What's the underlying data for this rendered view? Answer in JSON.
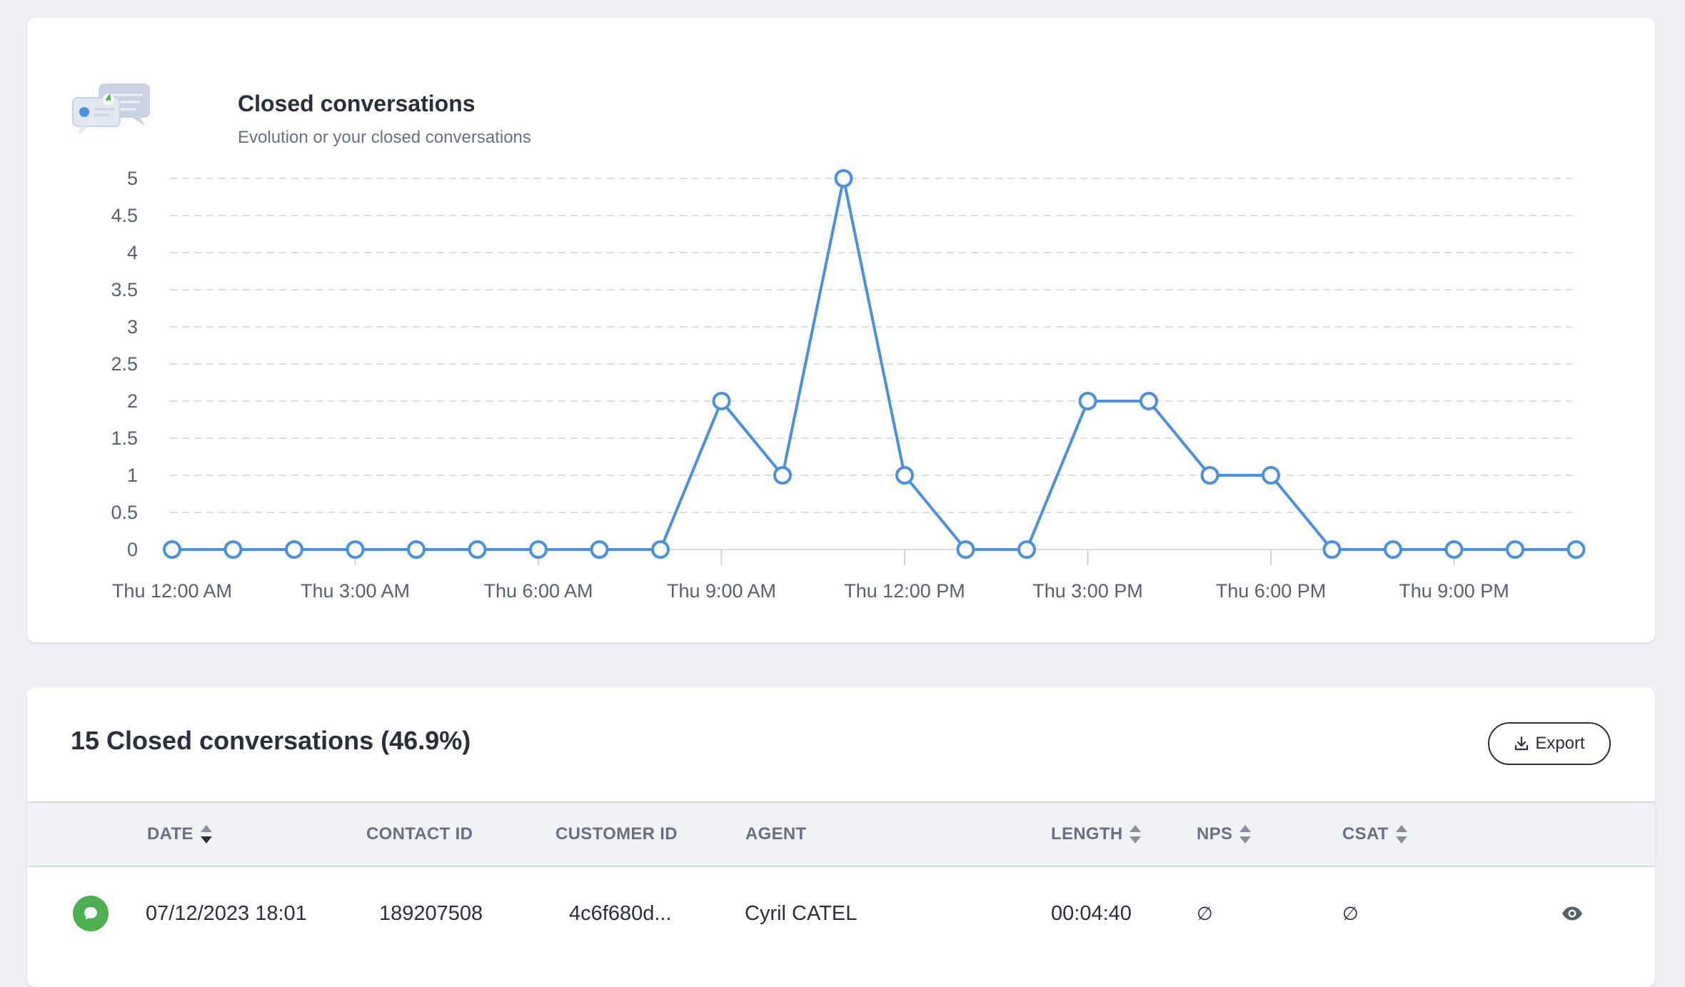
{
  "chart_card": {
    "title": "Closed conversations",
    "subtitle": "Evolution or your closed conversations",
    "icon": "chat-bubbles-icon"
  },
  "chart_data": {
    "type": "line",
    "title": "Closed conversations",
    "subtitle": "Evolution or your closed conversations",
    "xlabel": "",
    "ylabel": "",
    "ylim": [
      0,
      5
    ],
    "y_ticks": [
      "0",
      "0.5",
      "1",
      "1.5",
      "2",
      "2.5",
      "3",
      "3.5",
      "4",
      "4.5",
      "5"
    ],
    "x_tick_labels": [
      "Thu 12:00 AM",
      "Thu 3:00 AM",
      "Thu 6:00 AM",
      "Thu 9:00 AM",
      "Thu 12:00 PM",
      "Thu 3:00 PM",
      "Thu 6:00 PM",
      "Thu 9:00 PM"
    ],
    "x_hours": [
      0,
      1,
      2,
      3,
      4,
      5,
      6,
      7,
      8,
      9,
      10,
      11,
      12,
      13,
      14,
      15,
      16,
      17,
      18,
      19,
      20,
      21,
      22,
      23
    ],
    "series": [
      {
        "values": [
          0,
          0,
          0,
          0,
          0,
          0,
          0,
          0,
          0,
          2,
          1,
          5,
          1,
          0,
          0,
          2,
          2,
          1,
          1,
          0,
          0,
          0,
          0,
          0
        ],
        "color": "#4a90e2"
      }
    ],
    "grid": true,
    "grid_style": "dashed-horizontal",
    "legend": "none"
  },
  "table_card": {
    "title": "15 Closed conversations (46.9%)",
    "export_label": "Export",
    "columns": [
      {
        "key": "date",
        "label": "DATE",
        "sortable": true,
        "active_sort": "desc"
      },
      {
        "key": "contact_id",
        "label": "CONTACT ID",
        "sortable": false
      },
      {
        "key": "customer_id",
        "label": "CUSTOMER ID",
        "sortable": false
      },
      {
        "key": "agent",
        "label": "AGENT",
        "sortable": false
      },
      {
        "key": "length",
        "label": "LENGTH",
        "sortable": true
      },
      {
        "key": "nps",
        "label": "NPS",
        "sortable": true
      },
      {
        "key": "csat",
        "label": "CSAT",
        "sortable": true
      }
    ],
    "rows": [
      {
        "status_icon": "chat-bubble-icon",
        "status_color": "#4caf50",
        "date": "07/12/2023 18:01",
        "contact_id": "189207508",
        "customer_id": "4c6f680d...",
        "agent": "Cyril CATEL",
        "length": "00:04:40",
        "nps": "∅",
        "csat": "∅"
      }
    ]
  },
  "colors": {
    "background": "#eef0f5",
    "card": "#ffffff",
    "accent_line": "#4a90e2",
    "status_green": "#4caf50",
    "text_primary": "#2b2f38",
    "text_muted": "#6b7080"
  }
}
